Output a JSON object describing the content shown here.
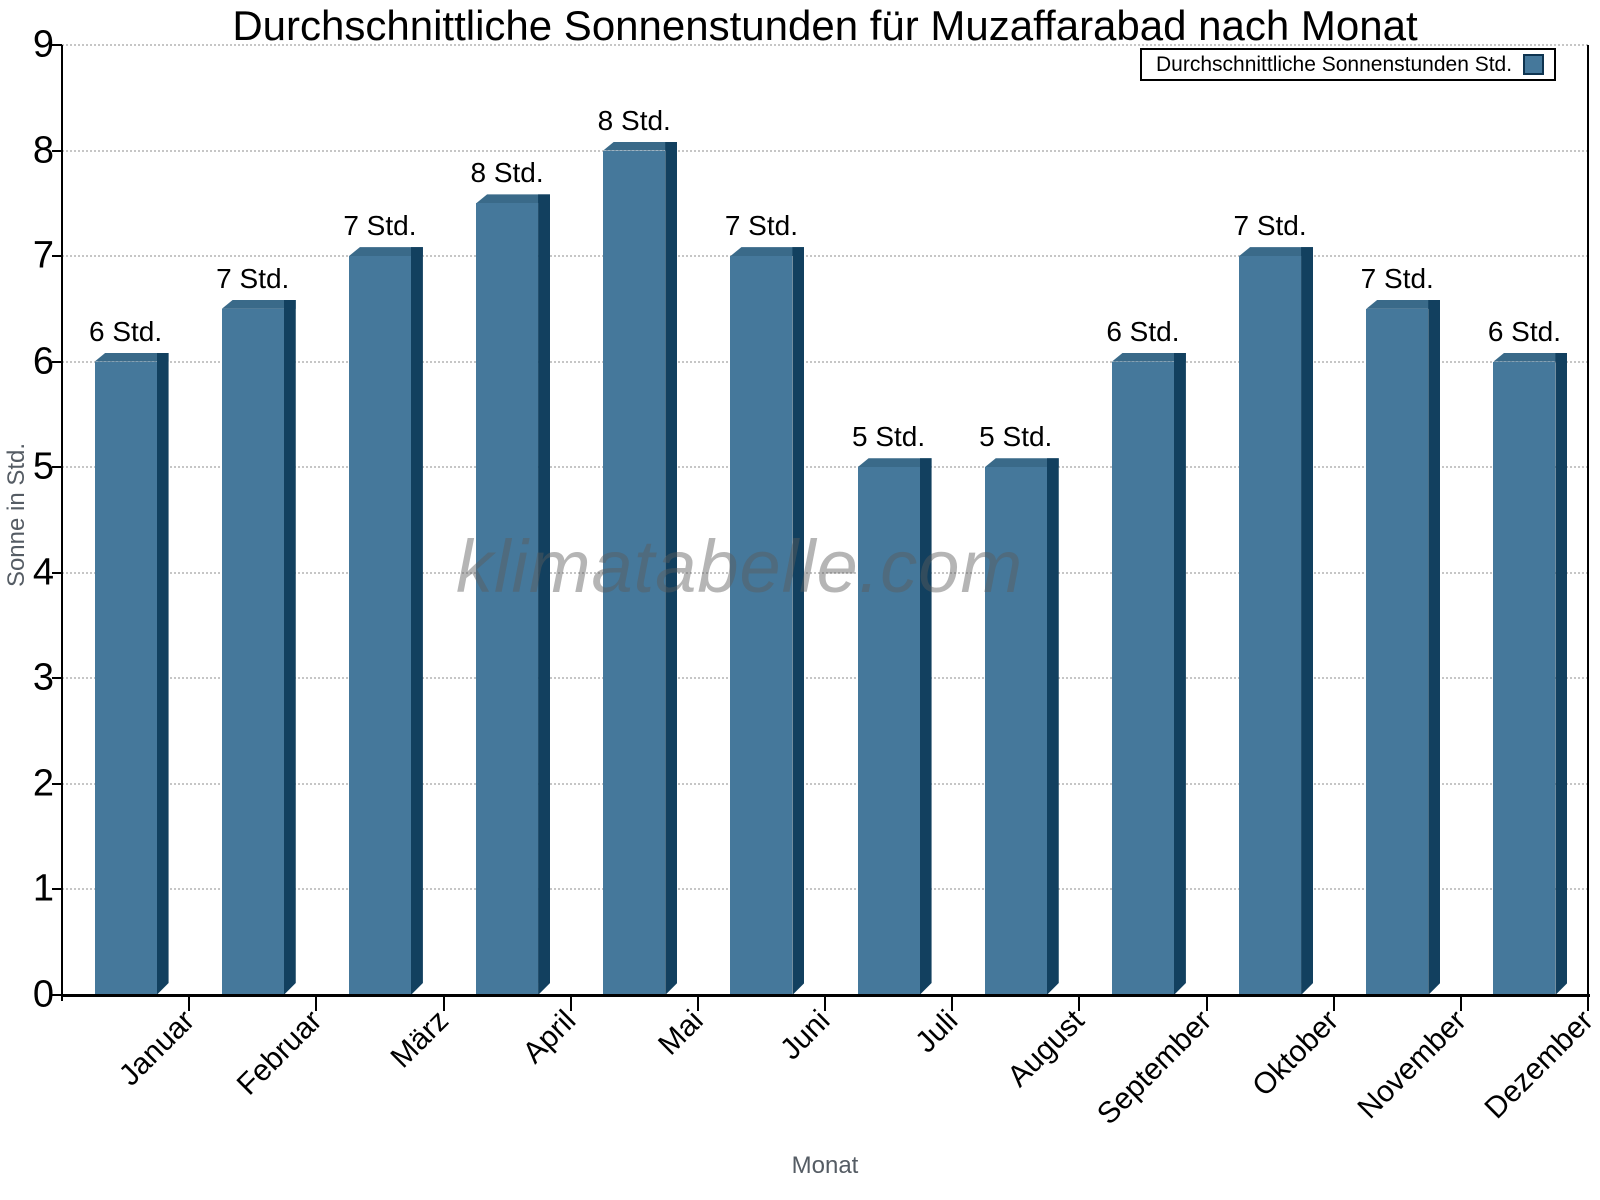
{
  "title": "Durchschnittliche Sonnenstunden für Muzaffarabad nach Monat",
  "legend": {
    "label": "Durchschnittliche Sonnenstunden Std."
  },
  "watermark": "klimatabelle.com",
  "axes": {
    "x_title": "Monat",
    "y_title": "Sonne in Std."
  },
  "chart_data": {
    "type": "bar",
    "title": "Durchschnittliche Sonnenstunden für Muzaffarabad nach Monat",
    "xlabel": "Monat",
    "ylabel": "Sonne in Std.",
    "ylim": [
      0,
      9
    ],
    "y_ticks": [
      0,
      1,
      2,
      3,
      4,
      5,
      6,
      7,
      8,
      9
    ],
    "grid": "horizontal-dotted",
    "legend_position": "top-right",
    "series_name": "Durchschnittliche Sonnenstunden Std.",
    "categories": [
      "Januar",
      "Februar",
      "März",
      "April",
      "Mai",
      "Juni",
      "Juli",
      "August",
      "September",
      "Oktober",
      "November",
      "Dezember"
    ],
    "values": [
      6.0,
      6.5,
      7.0,
      7.5,
      8.0,
      7.0,
      5.0,
      5.0,
      6.0,
      7.0,
      6.5,
      6.0
    ],
    "bar_labels": [
      "6 Std.",
      "7 Std.",
      "7 Std.",
      "8 Std.",
      "8 Std.",
      "7 Std.",
      "5 Std.",
      "5 Std.",
      "6 Std.",
      "7 Std.",
      "7 Std.",
      "6 Std."
    ],
    "colors": {
      "bar_front": "#45789B",
      "bar_side": "#12405F",
      "bar_top": "#3A6A89",
      "legend_swatch_border": "#0E3450",
      "grid": "#C6C6C6",
      "axis": "#000000",
      "muted_text": "#555C64"
    }
  }
}
